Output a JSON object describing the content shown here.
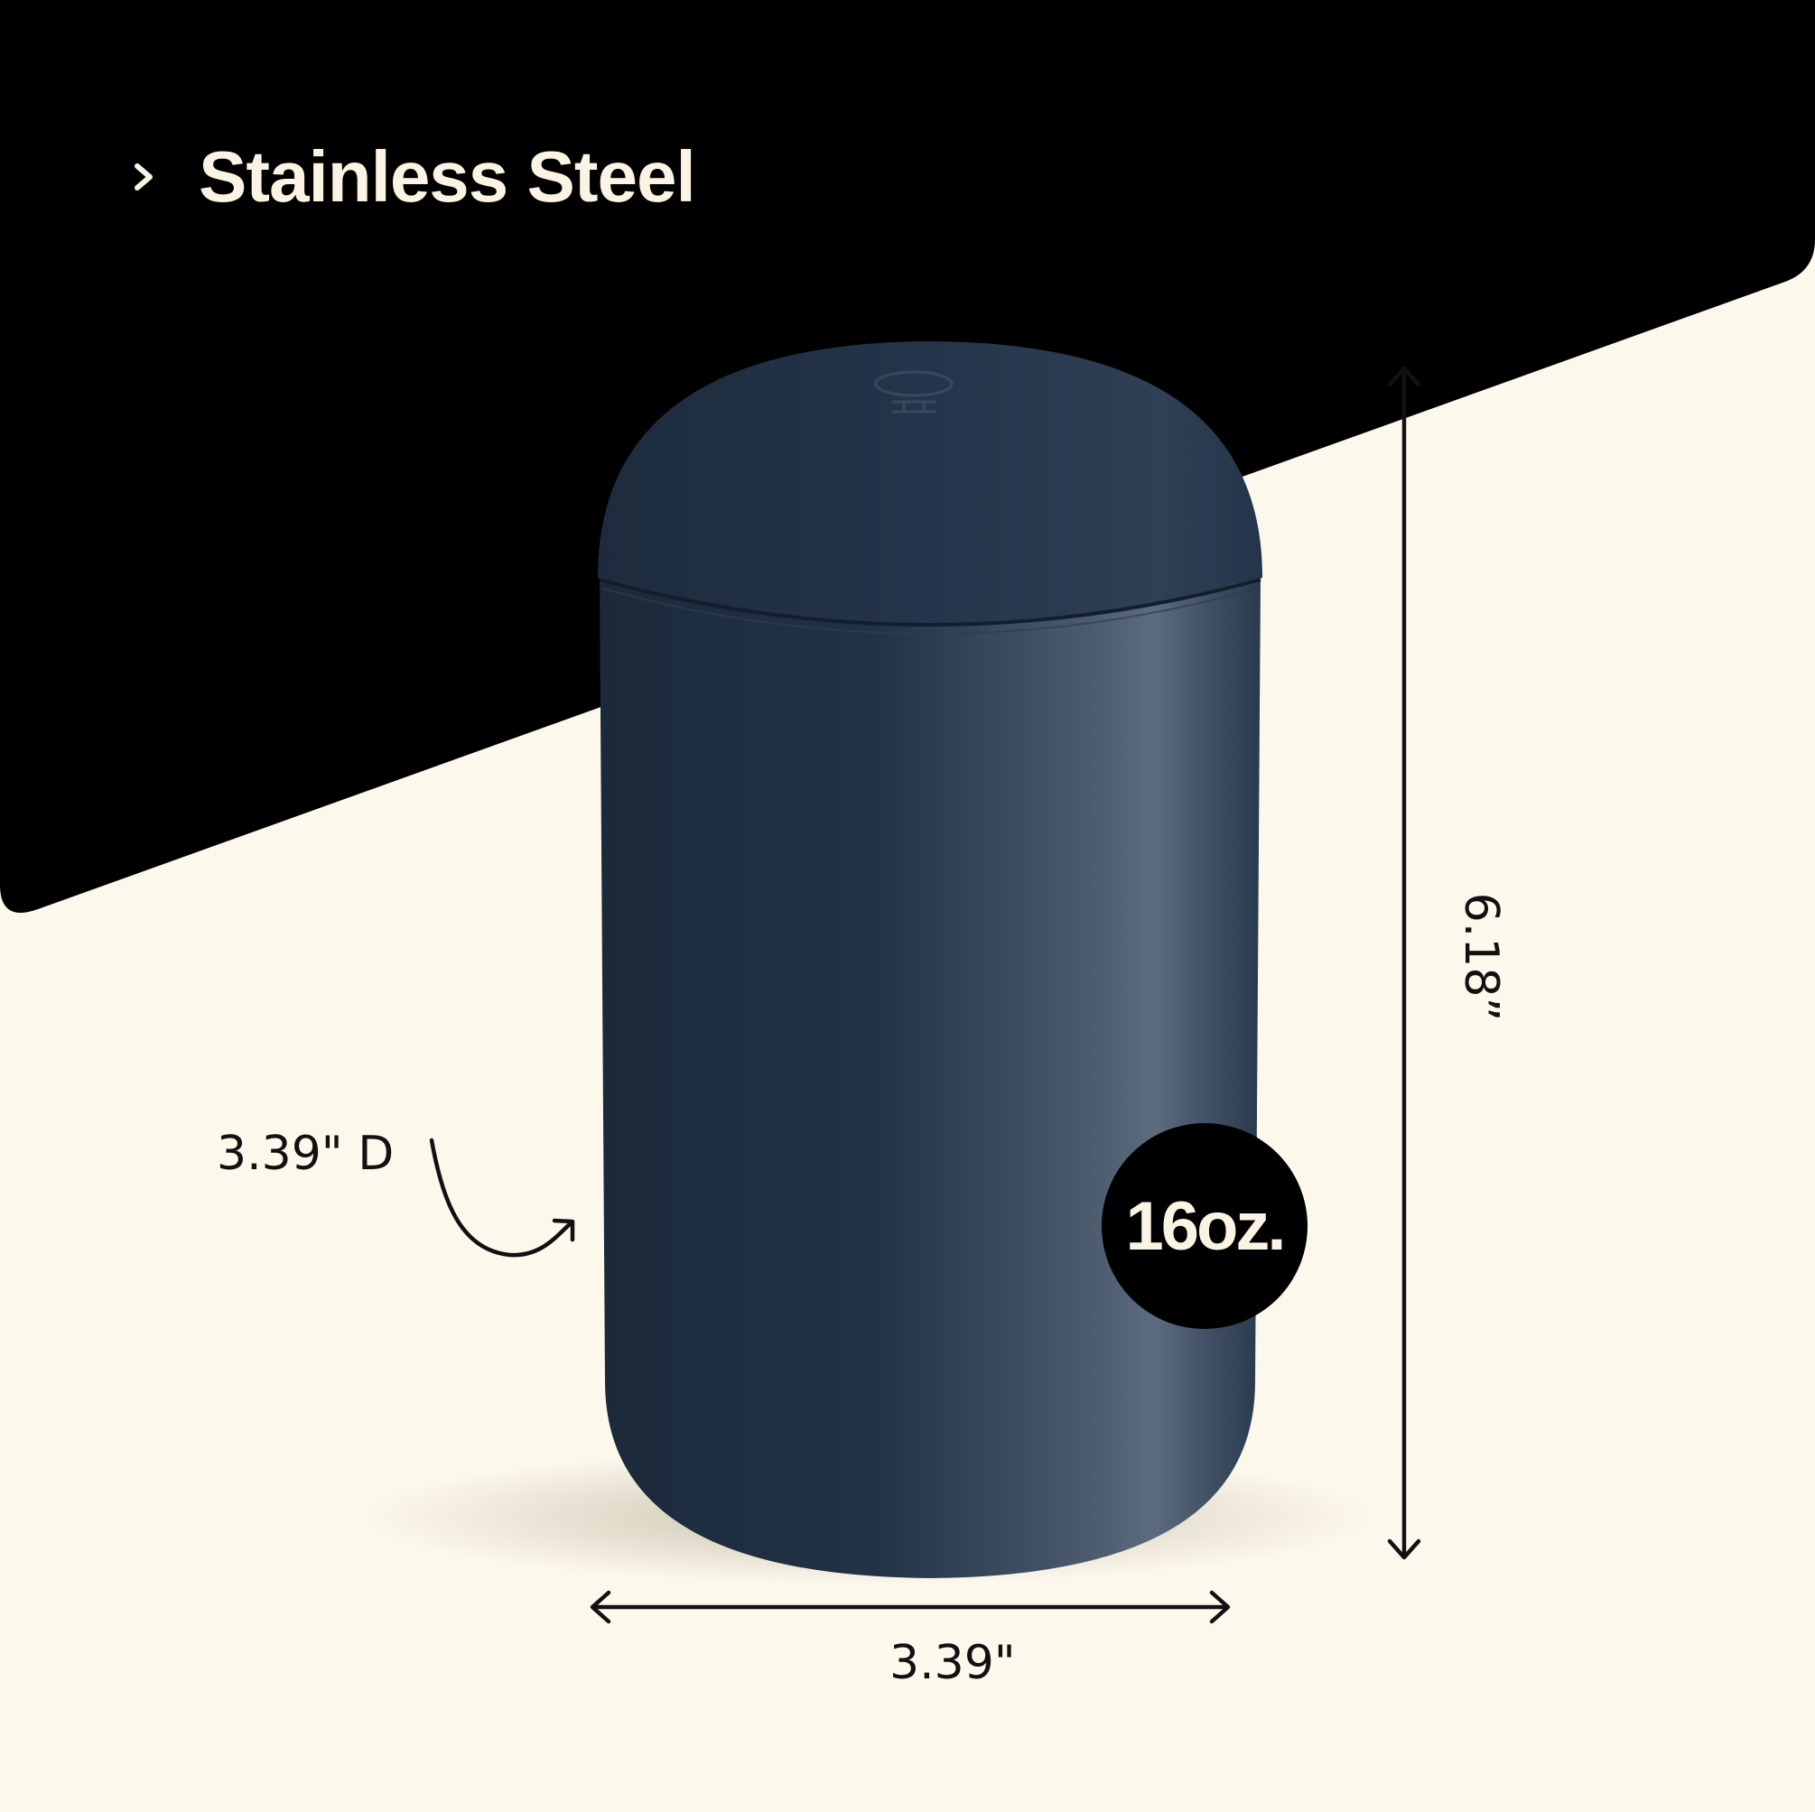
{
  "colors": {
    "background": "#FDF8EC",
    "banner": "#000000",
    "canister": "#1E2D40",
    "text_light": "#FBF3E3",
    "text_dark": "#111111"
  },
  "feature": {
    "icon": "chevron-right-icon",
    "label": "Stainless Steel"
  },
  "dimensions": {
    "height": "6.18”",
    "width": "3.39\"",
    "depth": "3.39\" D"
  },
  "capacity_badge": {
    "label": "16oz."
  }
}
